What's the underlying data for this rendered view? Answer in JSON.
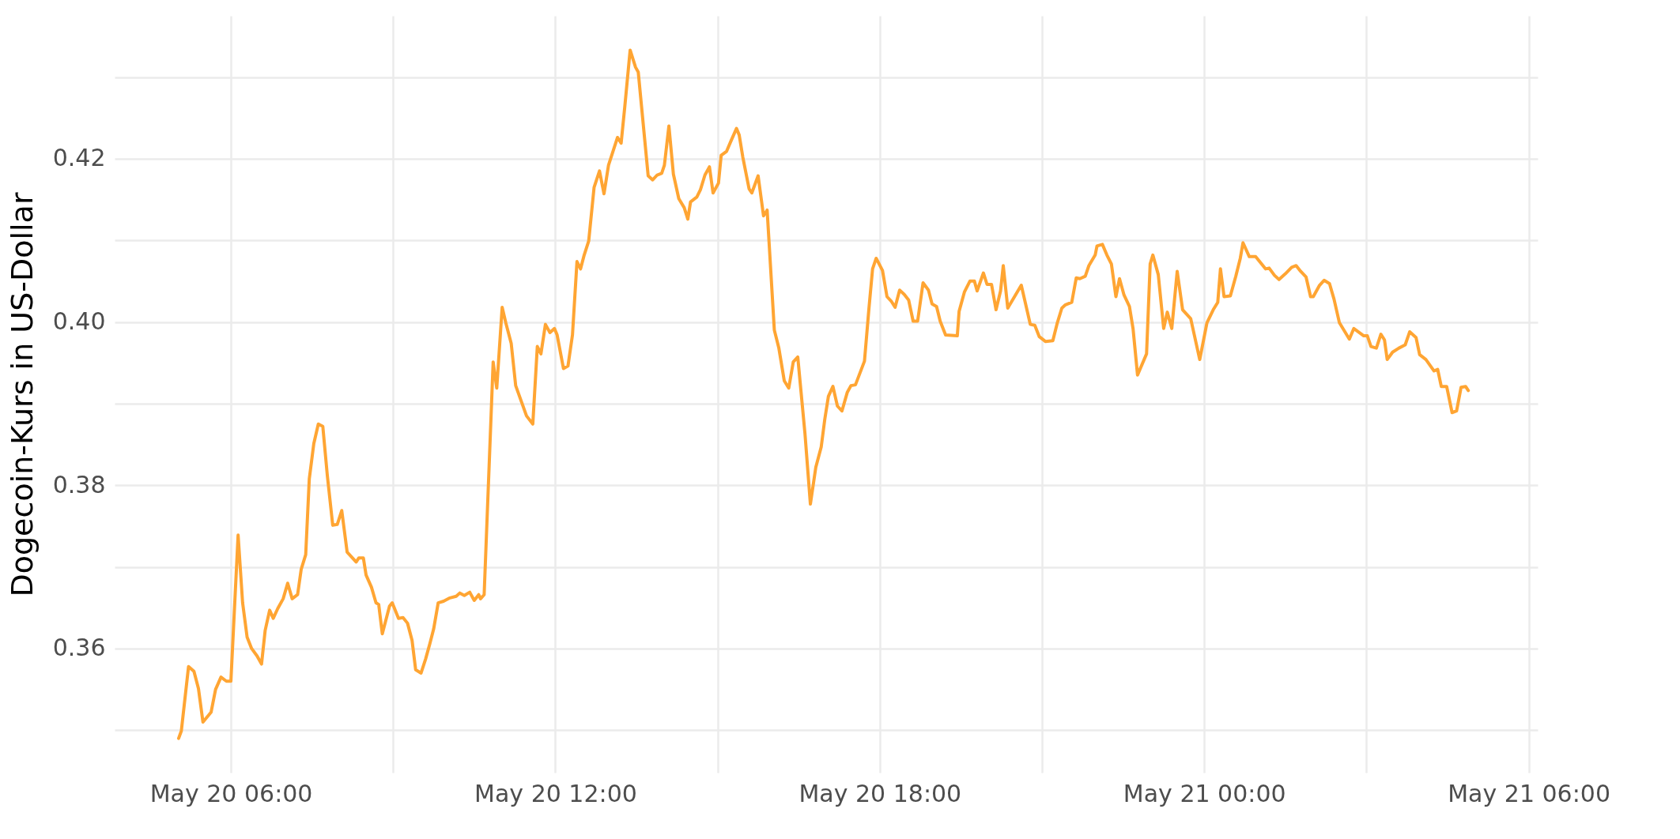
{
  "chart_data": {
    "type": "line",
    "ylabel": "Dogecoin-Kurs in US-Dollar",
    "x": [
      "--05-20T05:02",
      "--05-20T05:05",
      "--05-20T05:13",
      "--05-20T05:19",
      "--05-20T05:24",
      "--05-20T05:29",
      "--05-20T05:38",
      "--05-20T05:43",
      "--05-20T05:49",
      "--05-20T05:55",
      "--05-20T06:00",
      "--05-20T06:08",
      "--05-20T06:13",
      "--05-20T06:18",
      "--05-20T06:23",
      "--05-20T06:29",
      "--05-20T06:34",
      "--05-20T06:38",
      "--05-20T06:43",
      "--05-20T06:47",
      "--05-20T06:52",
      "--05-20T06:58",
      "--05-20T07:03",
      "--05-20T07:08",
      "--05-20T07:14",
      "--05-20T07:18",
      "--05-20T07:23",
      "--05-20T07:27",
      "--05-20T07:32",
      "--05-20T07:37",
      "--05-20T07:42",
      "--05-20T07:47",
      "--05-20T07:53",
      "--05-20T07:58",
      "--05-20T08:03",
      "--05-20T08:09",
      "--05-20T08:19",
      "--05-20T08:22",
      "--05-20T08:27",
      "--05-20T08:30",
      "--05-20T08:36",
      "--05-20T08:41",
      "--05-20T08:44",
      "--05-20T08:48",
      "--05-20T08:56",
      "--05-20T08:59",
      "--05-20T09:06",
      "--05-20T09:11",
      "--05-20T09:16",
      "--05-20T09:21",
      "--05-20T09:25",
      "--05-20T09:31",
      "--05-20T09:36",
      "--05-20T09:41",
      "--05-20T09:45",
      "--05-20T09:50",
      "--05-20T09:56",
      "--05-20T10:03",
      "--05-20T10:10",
      "--05-20T10:14",
      "--05-20T10:19",
      "--05-20T10:25",
      "--05-20T10:30",
      "--05-20T10:35",
      "--05-20T10:37",
      "--05-20T10:41",
      "--05-20T10:51",
      "--05-20T10:55",
      "--05-20T11:01",
      "--05-20T11:05",
      "--05-20T11:11",
      "--05-20T11:16",
      "--05-20T11:28",
      "--05-20T11:35",
      "--05-20T11:40",
      "--05-20T11:44",
      "--05-20T11:49",
      "--05-20T11:54",
      "--05-20T11:59",
      "--05-20T12:02",
      "--05-20T12:09",
      "--05-20T12:14",
      "--05-20T12:19",
      "--05-20T12:24",
      "--05-20T12:28",
      "--05-20T12:32",
      "--05-20T12:37",
      "--05-20T12:43",
      "--05-20T12:49",
      "--05-20T12:54",
      "--05-20T12:59",
      "--05-20T13:09",
      "--05-20T13:13",
      "--05-20T13:17",
      "--05-20T13:23",
      "--05-20T13:29",
      "--05-20T13:32",
      "--05-20T13:43",
      "--05-20T13:48",
      "--05-20T13:53",
      "--05-20T13:58",
      "--05-20T14:01",
      "--05-20T14:06",
      "--05-20T14:11",
      "--05-20T14:17",
      "--05-20T14:23",
      "--05-20T14:27",
      "--05-20T14:30",
      "--05-20T14:37",
      "--05-20T14:41",
      "--05-20T14:46",
      "--05-20T14:51",
      "--05-20T14:55",
      "--05-20T15:01",
      "--05-20T15:04",
      "--05-20T15:10",
      "--05-20T15:15",
      "--05-20T15:21",
      "--05-20T15:24",
      "--05-20T15:28",
      "--05-20T15:35",
      "--05-20T15:38",
      "--05-20T15:45",
      "--05-20T15:51",
      "--05-20T15:55",
      "--05-20T16:03",
      "--05-20T16:08",
      "--05-20T16:14",
      "--05-20T16:19",
      "--05-20T16:24",
      "--05-20T16:29",
      "--05-20T16:37",
      "--05-20T16:43",
      "--05-20T16:49",
      "--05-20T16:55",
      "--05-20T16:59",
      "--05-20T17:03",
      "--05-20T17:08",
      "--05-20T17:13",
      "--05-20T17:18",
      "--05-20T17:24",
      "--05-20T17:28",
      "--05-20T17:33",
      "--05-20T17:43",
      "--05-20T17:48",
      "--05-20T17:52",
      "--05-20T17:56",
      "--05-20T18:03",
      "--05-20T18:08",
      "--05-20T18:13",
      "--05-20T18:17",
      "--05-20T18:22",
      "--05-20T18:27",
      "--05-20T18:32",
      "--05-20T18:37",
      "--05-20T18:42",
      "--05-20T18:48",
      "--05-20T18:54",
      "--05-20T18:58",
      "--05-20T19:03",
      "--05-20T19:07",
      "--05-20T19:13",
      "--05-20T19:26",
      "--05-20T19:28",
      "--05-20T19:34",
      "--05-20T19:40",
      "--05-20T19:45",
      "--05-20T19:48",
      "--05-20T19:55",
      "--05-20T19:59",
      "--05-20T20:04",
      "--05-20T20:09",
      "--05-20T20:14",
      "--05-20T20:17",
      "--05-20T20:22",
      "--05-20T20:37",
      "--05-20T20:47",
      "--05-20T20:52",
      "--05-20T20:57",
      "--05-20T21:04",
      "--05-20T21:12",
      "--05-20T21:17",
      "--05-20T21:22",
      "--05-20T21:26",
      "--05-20T21:33",
      "--05-20T21:38",
      "--05-20T21:42",
      "--05-20T21:48",
      "--05-20T21:52",
      "--05-20T21:59",
      "--05-20T22:01",
      "--05-20T22:07",
      "--05-20T22:12",
      "--05-20T22:17",
      "--05-20T22:22",
      "--05-20T22:26",
      "--05-20T22:31",
      "--05-20T22:37",
      "--05-20T22:41",
      "--05-20T22:46",
      "--05-20T22:56",
      "--05-20T23:00",
      "--05-20T23:03",
      "--05-20T23:09",
      "--05-20T23:15",
      "--05-20T23:19",
      "--05-20T23:24",
      "--05-20T23:30",
      "--05-20T23:36",
      "--05-20T23:45",
      "--05-20T23:55",
      "--05-21T00:03",
      "--05-21T00:10",
      "--05-21T00:15",
      "--05-21T00:18",
      "--05-21T00:22",
      "--05-21T00:29",
      "--05-21T00:35",
      "--05-21T00:40",
      "--05-21T00:43",
      "--05-21T00:50",
      "--05-21T00:57",
      "--05-21T01:08",
      "--05-21T01:12",
      "--05-21T01:18",
      "--05-21T01:23",
      "--05-21T01:30",
      "--05-21T01:37",
      "--05-21T01:42",
      "--05-21T01:47",
      "--05-21T01:53",
      "--05-21T01:58",
      "--05-21T02:01",
      "--05-21T02:08",
      "--05-21T02:13",
      "--05-21T02:19",
      "--05-21T02:24",
      "--05-21T02:30",
      "--05-21T02:41",
      "--05-21T02:46",
      "--05-21T02:57",
      "--05-21T03:01",
      "--05-21T03:05",
      "--05-21T03:11",
      "--05-21T03:16",
      "--05-21T03:20",
      "--05-21T03:23",
      "--05-21T03:29",
      "--05-21T03:36",
      "--05-21T03:43",
      "--05-21T03:48",
      "--05-21T03:55",
      "--05-21T03:59",
      "--05-21T04:06",
      "--05-21T04:15",
      "--05-21T04:19",
      "--05-21T04:23",
      "--05-21T04:29",
      "--05-21T04:35",
      "--05-21T04:40",
      "--05-21T04:45",
      "--05-21T04:50",
      "--05-21T04:53"
    ],
    "series": [
      {
        "color": "#ffa533",
        "values": [
          0.349,
          0.3499,
          0.3578,
          0.3572,
          0.3551,
          0.351,
          0.3522,
          0.355,
          0.3565,
          0.356,
          0.356,
          0.3739,
          0.3656,
          0.3614,
          0.36,
          0.3591,
          0.3581,
          0.3622,
          0.3647,
          0.3637,
          0.3649,
          0.3661,
          0.368,
          0.3661,
          0.3666,
          0.3697,
          0.3715,
          0.3808,
          0.3851,
          0.3875,
          0.3872,
          0.3812,
          0.3751,
          0.3752,
          0.3769,
          0.3718,
          0.3706,
          0.3711,
          0.3711,
          0.369,
          0.3675,
          0.3656,
          0.3654,
          0.3618,
          0.3652,
          0.3656,
          0.3637,
          0.3638,
          0.3631,
          0.361,
          0.3574,
          0.357,
          0.3587,
          0.3607,
          0.3624,
          0.3656,
          0.3658,
          0.3662,
          0.3664,
          0.3668,
          0.3665,
          0.3669,
          0.3659,
          0.3666,
          0.3661,
          0.3666,
          0.3951,
          0.3919,
          0.4018,
          0.3999,
          0.3974,
          0.3922,
          0.3885,
          0.3875,
          0.397,
          0.3961,
          0.3997,
          0.3987,
          0.3992,
          0.3984,
          0.3943,
          0.3946,
          0.3984,
          0.4074,
          0.4065,
          0.4082,
          0.4099,
          0.4165,
          0.4185,
          0.4157,
          0.4192,
          0.4226,
          0.4219,
          0.4263,
          0.4333,
          0.4312,
          0.4306,
          0.4179,
          0.4174,
          0.418,
          0.4182,
          0.4192,
          0.424,
          0.4181,
          0.4151,
          0.414,
          0.4126,
          0.4147,
          0.4153,
          0.4162,
          0.418,
          0.419,
          0.4158,
          0.417,
          0.4204,
          0.4209,
          0.4222,
          0.4237,
          0.4229,
          0.4202,
          0.4163,
          0.4158,
          0.4179,
          0.413,
          0.4137,
          0.399,
          0.3968,
          0.3928,
          0.3919,
          0.3951,
          0.3957,
          0.3863,
          0.3777,
          0.3822,
          0.3847,
          0.3881,
          0.3909,
          0.3921,
          0.3897,
          0.3891,
          0.3914,
          0.3922,
          0.3923,
          0.3952,
          0.4017,
          0.4065,
          0.4078,
          0.4063,
          0.4031,
          0.4025,
          0.4018,
          0.4039,
          0.4034,
          0.4027,
          0.4001,
          0.4001,
          0.4048,
          0.4039,
          0.4022,
          0.4019,
          0.4001,
          0.3984,
          0.3983,
          0.4013,
          0.4037,
          0.405,
          0.405,
          0.4038,
          0.406,
          0.4046,
          0.4046,
          0.4015,
          0.4038,
          0.4069,
          0.4017,
          0.4045,
          0.3997,
          0.3996,
          0.3982,
          0.3976,
          0.3977,
          0.3999,
          0.4017,
          0.4021,
          0.4024,
          0.4054,
          0.4053,
          0.4056,
          0.4069,
          0.4082,
          0.4093,
          0.4095,
          0.4082,
          0.4071,
          0.4031,
          0.4053,
          0.4033,
          0.4019,
          0.3992,
          0.3935,
          0.3961,
          0.4071,
          0.4082,
          0.4058,
          0.3992,
          0.4012,
          0.3992,
          0.4062,
          0.4015,
          0.4004,
          0.3954,
          0.3999,
          0.4015,
          0.4024,
          0.4065,
          0.4031,
          0.4032,
          0.4056,
          0.4078,
          0.4097,
          0.408,
          0.408,
          0.4065,
          0.4066,
          0.4057,
          0.4052,
          0.4059,
          0.4067,
          0.4069,
          0.4062,
          0.4055,
          0.4031,
          0.4031,
          0.4045,
          0.4051,
          0.4047,
          0.4028,
          0.3999,
          0.3979,
          0.3992,
          0.3983,
          0.3983,
          0.397,
          0.3968,
          0.3985,
          0.3978,
          0.3954,
          0.3963,
          0.3968,
          0.3972,
          0.3988,
          0.3981,
          0.396,
          0.3954,
          0.394,
          0.3942,
          0.3921,
          0.3921,
          0.3889,
          0.3891,
          0.392,
          0.3921,
          0.3916
        ]
      }
    ],
    "xlim": [
      "--05-20T03:51",
      "--05-21T06:10"
    ],
    "xticks": [
      {
        "value": "--05-20T06:00",
        "label": "May 20 06:00"
      },
      {
        "value": "--05-20T09:00",
        "label": null
      },
      {
        "value": "--05-20T12:00",
        "label": "May 20 12:00"
      },
      {
        "value": "--05-20T15:00",
        "label": null
      },
      {
        "value": "--05-20T18:00",
        "label": "May 20 18:00"
      },
      {
        "value": "--05-20T21:00",
        "label": null
      },
      {
        "value": "--05-21T00:00",
        "label": "May 21 00:00"
      },
      {
        "value": "--05-21T03:00",
        "label": null
      },
      {
        "value": "--05-21T06:00",
        "label": "May 21 06:00"
      }
    ],
    "ylim": [
      0.3448,
      0.4375
    ],
    "yticks": [
      {
        "value": 0.35,
        "label": null
      },
      {
        "value": 0.36,
        "label": "0.36"
      },
      {
        "value": 0.37,
        "label": null
      },
      {
        "value": 0.38,
        "label": "0.38"
      },
      {
        "value": 0.39,
        "label": null
      },
      {
        "value": 0.4,
        "label": "0.40"
      },
      {
        "value": 0.41,
        "label": null
      },
      {
        "value": 0.42,
        "label": "0.42"
      },
      {
        "value": 0.43,
        "label": null
      }
    ],
    "grid": true
  }
}
